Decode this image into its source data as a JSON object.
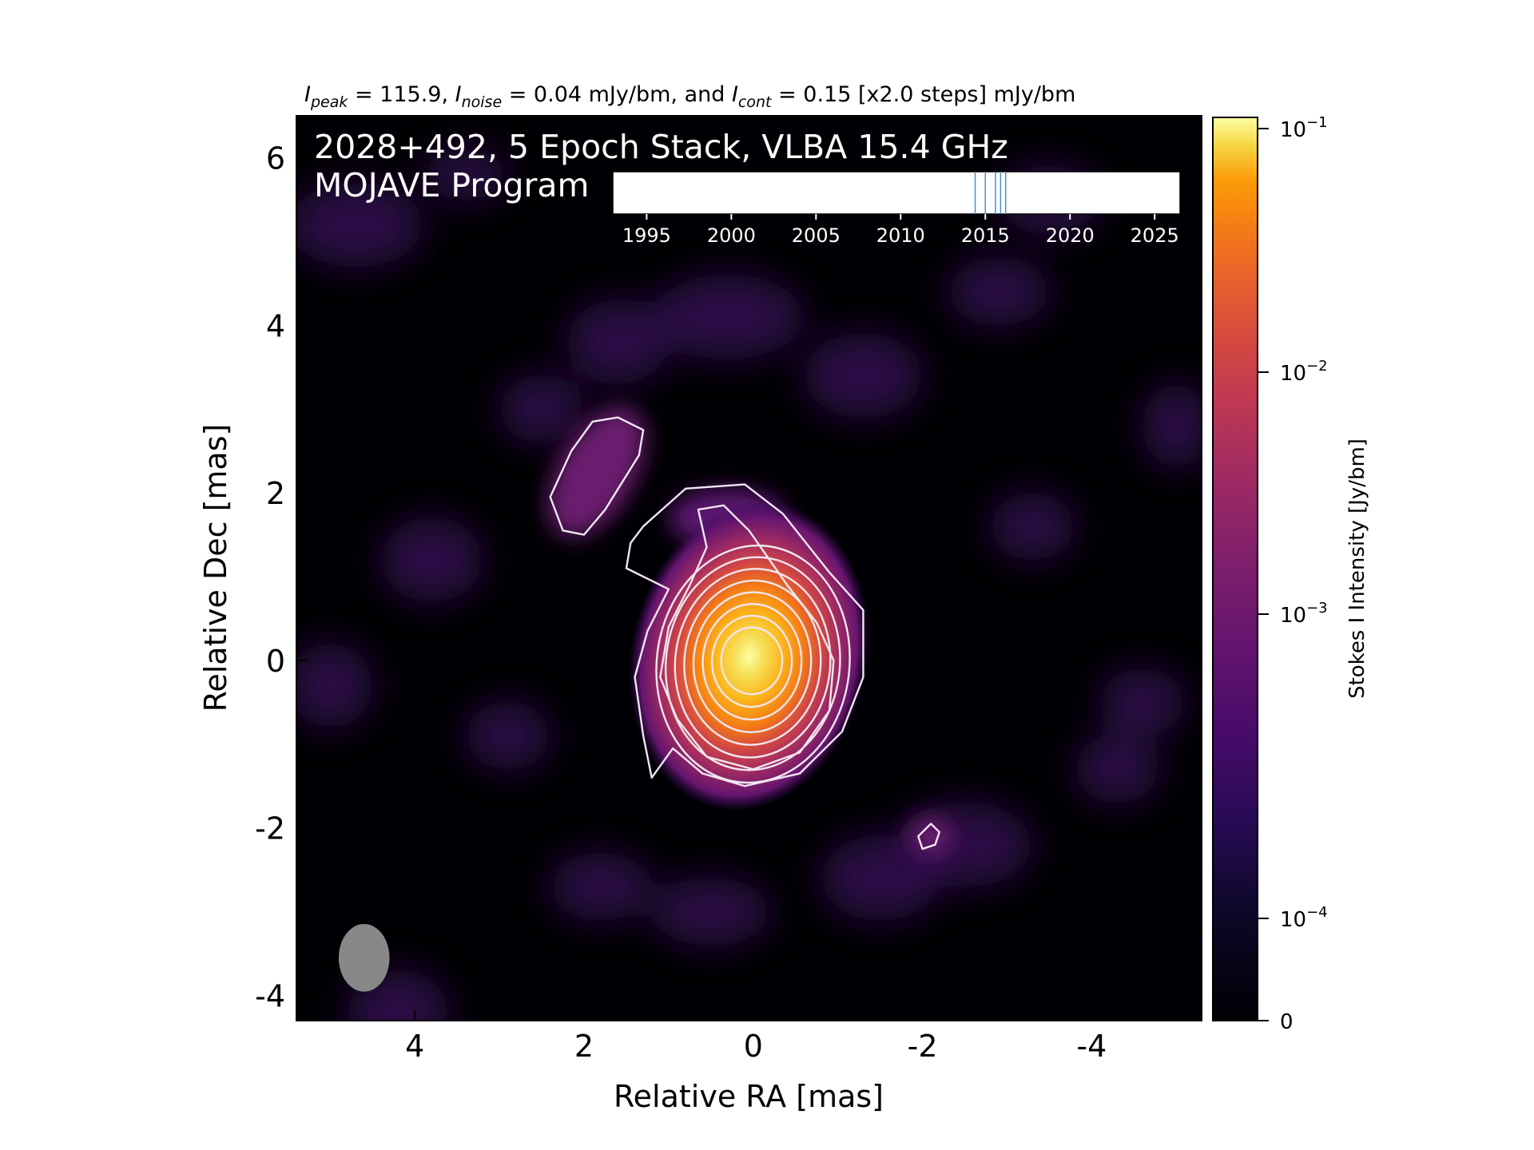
{
  "chart_data": {
    "type": "heatmap",
    "title_parts": {
      "peak_sym": "I",
      "peak_sub": "peak",
      "peak_text": " = 115.9, ",
      "noise_sym": "I",
      "noise_sub": "noise",
      "noise_text": " = 0.04 mJy/bm, and ",
      "cont_sym": "I",
      "cont_sub": "cont",
      "cont_text": " = 0.15 [x2.0 steps] mJy/bm"
    },
    "annotation_line1": "2028+492, 5 Epoch Stack, VLBA 15.4 GHz",
    "annotation_line2": "MOJAVE Program",
    "xlabel": "Relative RA [mas]",
    "ylabel": "Relative Dec [mas]",
    "xlim": [
      5.4,
      -5.3
    ],
    "ylim": [
      -4.3,
      6.5
    ],
    "x_ticks": [
      4,
      2,
      0,
      -2,
      -4
    ],
    "y_ticks": [
      6,
      4,
      2,
      0,
      -2,
      -4
    ],
    "peak_intensity_mJy_per_beam": 115.9,
    "noise_mJy_per_beam": 0.04,
    "lowest_contour_mJy_per_beam": 0.15,
    "contour_step_factor": 2.0,
    "contour_levels_count": 10,
    "peak_position_mas": [
      0,
      0
    ],
    "core_extent_mas": {
      "ra": [
        1.4,
        -1.3
      ],
      "dec": [
        -1.5,
        2.0
      ]
    },
    "secondary_features": [
      {
        "name": "north-east knot",
        "ra_range": [
          2.4,
          1.3
        ],
        "dec_range": [
          1.5,
          3.0
        ]
      },
      {
        "name": "south-west knot",
        "ra": -2.1,
        "dec": -2.1
      }
    ],
    "beam": {
      "ra": 4.6,
      "dec": -3.55,
      "major_mas": 0.8,
      "minor_mas": 0.6,
      "pa_deg": 0,
      "color": "#888888"
    },
    "colormap": "inferno",
    "colorbar": {
      "label": "Stokes I Intensity [Jy/bm]",
      "scale": "log",
      "ticks": [
        {
          "value": 0.1,
          "base": "10",
          "exp": "−1"
        },
        {
          "value": 0.01,
          "base": "10",
          "exp": "−2"
        },
        {
          "value": 0.001,
          "base": "10",
          "exp": "−3"
        },
        {
          "value": 0.0001,
          "base": "10",
          "exp": "−4"
        },
        {
          "value": 0,
          "base": "0",
          "exp": ""
        }
      ]
    },
    "epoch_timeline": {
      "xlim": [
        1993,
        2026.5
      ],
      "ticks": [
        1995,
        2000,
        2005,
        2010,
        2015,
        2020,
        2025
      ],
      "epochs": [
        2014.4,
        2015.0,
        2015.6,
        2015.9,
        2016.2
      ],
      "epoch_color": "#4a90c8"
    }
  }
}
